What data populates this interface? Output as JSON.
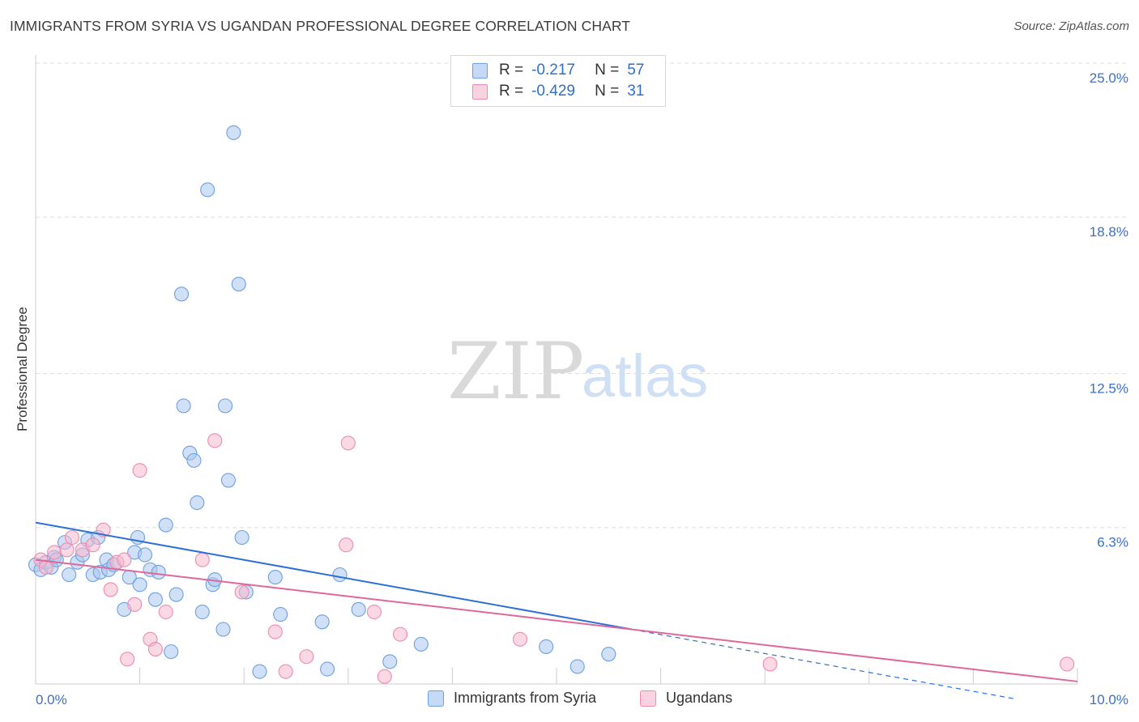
{
  "title": "IMMIGRANTS FROM SYRIA VS UGANDAN PROFESSIONAL DEGREE CORRELATION CHART",
  "source": "Source: ZipAtlas.com",
  "watermark": {
    "zip": "ZIP",
    "atlas": "atlas"
  },
  "colors": {
    "blue": "#2d6fd4",
    "pink": "#e0679a",
    "blue_fill": "#a9c8f0",
    "pink_fill": "#f5b8cd",
    "axis_text": "#3a70c9",
    "grid": "#dddddd"
  },
  "legend": {
    "rows": [
      {
        "r_label": "R =",
        "r_value": "-0.217",
        "n_label": "N =",
        "n_value": "57"
      },
      {
        "r_label": "R =",
        "r_value": "-0.429",
        "n_label": "N =",
        "n_value": "31"
      }
    ]
  },
  "bottom_legend": {
    "series1": "Immigrants from Syria",
    "series2": "Ugandans"
  },
  "chart_data": {
    "type": "scatter",
    "title": "IMMIGRANTS FROM SYRIA VS UGANDAN PROFESSIONAL DEGREE CORRELATION CHART",
    "xlabel": "",
    "ylabel": "Professional Degree",
    "xlim": [
      0,
      10
    ],
    "ylim": [
      0,
      25.0
    ],
    "x_tick_labels": [
      "0.0%",
      "10.0%"
    ],
    "y_ticks": [
      25.0,
      18.8,
      12.5,
      6.3
    ],
    "y_tick_labels": [
      "25.0%",
      "18.8%",
      "12.5%",
      "6.3%"
    ],
    "series": [
      {
        "name": "Immigrants from Syria",
        "r": -0.217,
        "n": 57,
        "trend": {
          "x0": 0.0,
          "y0": 6.5,
          "x1": 5.72,
          "y1": 2.2,
          "dash_x1": 9.4,
          "dash_y1": -0.6
        },
        "points": [
          [
            0.0,
            4.8
          ],
          [
            0.05,
            4.6
          ],
          [
            0.1,
            4.9
          ],
          [
            0.15,
            4.7
          ],
          [
            0.18,
            5.1
          ],
          [
            0.2,
            5.0
          ],
          [
            0.28,
            5.7
          ],
          [
            0.32,
            4.4
          ],
          [
            0.4,
            4.9
          ],
          [
            0.45,
            5.2
          ],
          [
            0.5,
            5.8
          ],
          [
            0.55,
            4.4
          ],
          [
            0.6,
            5.9
          ],
          [
            0.62,
            4.5
          ],
          [
            0.68,
            5.0
          ],
          [
            0.7,
            4.6
          ],
          [
            0.75,
            4.8
          ],
          [
            0.85,
            3.0
          ],
          [
            0.9,
            4.3
          ],
          [
            0.95,
            5.3
          ],
          [
            0.98,
            5.9
          ],
          [
            1.0,
            4.0
          ],
          [
            1.05,
            5.2
          ],
          [
            1.1,
            4.6
          ],
          [
            1.15,
            3.4
          ],
          [
            1.18,
            4.5
          ],
          [
            1.25,
            6.4
          ],
          [
            1.3,
            1.3
          ],
          [
            1.35,
            3.6
          ],
          [
            1.4,
            15.7
          ],
          [
            1.42,
            11.2
          ],
          [
            1.48,
            9.3
          ],
          [
            1.52,
            9.0
          ],
          [
            1.55,
            7.3
          ],
          [
            1.6,
            2.9
          ],
          [
            1.65,
            19.9
          ],
          [
            1.7,
            4.0
          ],
          [
            1.72,
            4.2
          ],
          [
            1.8,
            2.2
          ],
          [
            1.82,
            11.2
          ],
          [
            1.85,
            8.2
          ],
          [
            1.9,
            22.2
          ],
          [
            1.95,
            16.1
          ],
          [
            1.98,
            5.9
          ],
          [
            2.02,
            3.7
          ],
          [
            2.15,
            0.5
          ],
          [
            2.3,
            4.3
          ],
          [
            2.35,
            2.8
          ],
          [
            2.75,
            2.5
          ],
          [
            2.8,
            0.6
          ],
          [
            2.92,
            4.4
          ],
          [
            3.1,
            3.0
          ],
          [
            3.4,
            0.9
          ],
          [
            3.7,
            1.6
          ],
          [
            4.9,
            1.5
          ],
          [
            5.2,
            0.7
          ],
          [
            5.5,
            1.2
          ]
        ]
      },
      {
        "name": "Ugandans",
        "r": -0.429,
        "n": 31,
        "trend": {
          "x0": 0.0,
          "y0": 5.0,
          "x1": 10.0,
          "y1": 0.1
        },
        "points": [
          [
            0.05,
            5.0
          ],
          [
            0.1,
            4.7
          ],
          [
            0.18,
            5.3
          ],
          [
            0.3,
            5.4
          ],
          [
            0.35,
            5.9
          ],
          [
            0.45,
            5.4
          ],
          [
            0.55,
            5.6
          ],
          [
            0.65,
            6.2
          ],
          [
            0.72,
            3.8
          ],
          [
            0.78,
            4.9
          ],
          [
            0.85,
            5.0
          ],
          [
            0.88,
            1.0
          ],
          [
            0.95,
            3.2
          ],
          [
            1.0,
            8.6
          ],
          [
            1.1,
            1.8
          ],
          [
            1.15,
            1.4
          ],
          [
            1.25,
            2.9
          ],
          [
            1.6,
            5.0
          ],
          [
            1.72,
            9.8
          ],
          [
            1.98,
            3.7
          ],
          [
            2.3,
            2.1
          ],
          [
            2.4,
            0.5
          ],
          [
            2.6,
            1.1
          ],
          [
            3.0,
            9.7
          ],
          [
            2.98,
            5.6
          ],
          [
            3.25,
            2.9
          ],
          [
            3.35,
            0.3
          ],
          [
            3.5,
            2.0
          ],
          [
            4.65,
            1.8
          ],
          [
            7.05,
            0.8
          ],
          [
            9.9,
            0.8
          ]
        ]
      }
    ]
  }
}
